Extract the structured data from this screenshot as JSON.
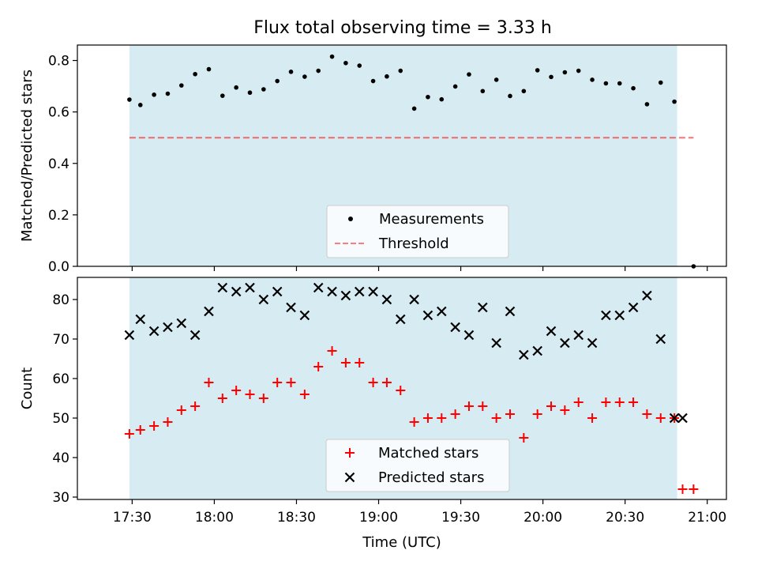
{
  "chart_data": [
    {
      "type": "scatter",
      "title": "Flux total observing time = 3.33 h",
      "xlabel": "",
      "ylabel": "Matched/Predicted stars",
      "ylim": [
        0,
        0.86
      ],
      "yticks": [
        "0.0",
        "0.2",
        "0.4",
        "0.6",
        "0.8"
      ],
      "xticks": [
        "17:30",
        "18:00",
        "18:30",
        "19:00",
        "19:30",
        "20:00",
        "20:30",
        "21:00"
      ],
      "legend_position": "lower-center",
      "shaded_interval": [
        "17:29",
        "20:49"
      ],
      "colors": {
        "shade": "#add8e6",
        "points": "#000000",
        "threshold": "#ff0000"
      },
      "series": [
        {
          "name": "Measurements",
          "marker": "dot",
          "x": [
            "17:29",
            "17:33",
            "17:38",
            "17:43",
            "17:48",
            "17:53",
            "17:58",
            "18:03",
            "18:08",
            "18:13",
            "18:18",
            "18:23",
            "18:28",
            "18:33",
            "18:38",
            "18:43",
            "18:48",
            "18:53",
            "18:58",
            "19:03",
            "19:08",
            "19:13",
            "19:18",
            "19:23",
            "19:28",
            "19:33",
            "19:38",
            "19:43",
            "19:48",
            "19:53",
            "19:58",
            "20:03",
            "20:08",
            "20:13",
            "20:18",
            "20:23",
            "20:28",
            "20:33",
            "20:38",
            "20:43",
            "20:48",
            "20:55"
          ],
          "y": [
            0.648,
            0.627,
            0.667,
            0.671,
            0.703,
            0.747,
            0.766,
            0.663,
            0.695,
            0.675,
            0.688,
            0.72,
            0.756,
            0.737,
            0.76,
            0.815,
            0.79,
            0.78,
            0.72,
            0.738,
            0.76,
            0.613,
            0.658,
            0.649,
            0.699,
            0.746,
            0.681,
            0.725,
            0.662,
            0.681,
            0.762,
            0.736,
            0.754,
            0.76,
            0.725,
            0.711,
            0.711,
            0.692,
            0.63,
            0.714,
            0.64,
            0.0
          ]
        },
        {
          "name": "Threshold",
          "line_style": "dashed",
          "x": [
            "17:29",
            "20:55"
          ],
          "y": [
            0.5,
            0.5
          ]
        }
      ]
    },
    {
      "type": "scatter",
      "title": "",
      "xlabel": "Time (UTC)",
      "ylabel": "Count",
      "ylim": [
        29.4,
        85.6
      ],
      "yticks": [
        "30",
        "40",
        "50",
        "60",
        "70",
        "80"
      ],
      "xticks": [
        "17:30",
        "18:00",
        "18:30",
        "19:00",
        "19:30",
        "20:00",
        "20:30",
        "21:00"
      ],
      "legend_position": "lower-center",
      "shaded_interval": [
        "17:29",
        "20:49"
      ],
      "colors": {
        "shade": "#add8e6",
        "matched": "#ff0000",
        "predicted": "#000000"
      },
      "series": [
        {
          "name": "Matched stars",
          "marker": "plus",
          "x": [
            "17:29",
            "17:33",
            "17:38",
            "17:43",
            "17:48",
            "17:53",
            "17:58",
            "18:03",
            "18:08",
            "18:13",
            "18:18",
            "18:23",
            "18:28",
            "18:33",
            "18:38",
            "18:43",
            "18:48",
            "18:53",
            "18:58",
            "19:03",
            "19:08",
            "19:13",
            "19:18",
            "19:23",
            "19:28",
            "19:33",
            "19:38",
            "19:43",
            "19:48",
            "19:53",
            "19:58",
            "20:03",
            "20:08",
            "20:13",
            "20:18",
            "20:23",
            "20:28",
            "20:33",
            "20:38",
            "20:43",
            "20:48",
            "20:51",
            "20:55"
          ],
          "y": [
            46,
            47,
            48,
            49,
            52,
            53,
            59,
            55,
            57,
            56,
            55,
            59,
            59,
            56,
            63,
            67,
            64,
            64,
            59,
            59,
            57,
            49,
            50,
            50,
            51,
            53,
            53,
            50,
            51,
            45,
            51,
            53,
            52,
            54,
            50,
            54,
            54,
            54,
            51,
            50,
            50,
            32,
            32
          ]
        },
        {
          "name": "Predicted stars",
          "marker": "x",
          "x": [
            "17:29",
            "17:33",
            "17:38",
            "17:43",
            "17:48",
            "17:53",
            "17:58",
            "18:03",
            "18:08",
            "18:13",
            "18:18",
            "18:23",
            "18:28",
            "18:33",
            "18:38",
            "18:43",
            "18:48",
            "18:53",
            "18:58",
            "19:03",
            "19:08",
            "19:13",
            "19:18",
            "19:23",
            "19:28",
            "19:33",
            "19:38",
            "19:43",
            "19:48",
            "19:53",
            "19:58",
            "20:03",
            "20:08",
            "20:13",
            "20:18",
            "20:23",
            "20:28",
            "20:33",
            "20:38",
            "20:43",
            "20:48",
            "20:51"
          ],
          "y": [
            71,
            75,
            72,
            73,
            74,
            71,
            77,
            83,
            82,
            83,
            80,
            82,
            78,
            76,
            83,
            82,
            81,
            82,
            82,
            80,
            75,
            80,
            76,
            77,
            73,
            71,
            78,
            69,
            77,
            66,
            67,
            72,
            69,
            71,
            69,
            76,
            76,
            78,
            81,
            70,
            50,
            50
          ]
        }
      ]
    }
  ]
}
